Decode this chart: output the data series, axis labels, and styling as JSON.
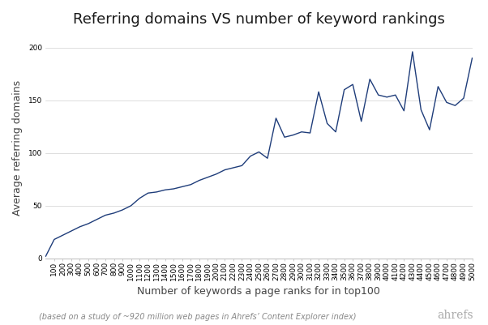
{
  "title": "Referring domains VS number of keyword rankings",
  "xlabel": "Number of keywords a page ranks for in top100",
  "ylabel": "Average referring domains",
  "footnote": "(based on a study of ~920 million web pages in Ahrefs’ Content Explorer index)",
  "watermark": "ahrefs",
  "line_color": "#1f3d7a",
  "background_color": "#ffffff",
  "x": [
    0,
    100,
    200,
    300,
    400,
    500,
    600,
    700,
    800,
    900,
    1000,
    1100,
    1200,
    1300,
    1400,
    1500,
    1600,
    1700,
    1800,
    1900,
    2000,
    2100,
    2200,
    2300,
    2400,
    2500,
    2600,
    2700,
    2800,
    2900,
    3000,
    3100,
    3200,
    3300,
    3400,
    3500,
    3600,
    3700,
    3800,
    3900,
    4000,
    4100,
    4200,
    4300,
    4400,
    4500,
    4600,
    4700,
    4800,
    4900,
    5000
  ],
  "y": [
    2,
    18,
    22,
    26,
    30,
    33,
    37,
    41,
    43,
    46,
    50,
    57,
    62,
    63,
    65,
    66,
    68,
    70,
    74,
    77,
    80,
    84,
    86,
    88,
    97,
    101,
    95,
    133,
    115,
    117,
    120,
    119,
    158,
    128,
    120,
    160,
    165,
    130,
    170,
    155,
    153,
    155,
    140,
    196,
    141,
    122,
    163,
    148,
    145,
    152,
    190
  ],
  "ylim": [
    0,
    210
  ],
  "xlim": [
    0,
    5000
  ],
  "yticks": [
    0,
    50,
    100,
    150,
    200
  ],
  "title_fontsize": 13,
  "label_fontsize": 9,
  "tick_fontsize": 6.5,
  "footnote_fontsize": 7,
  "watermark_fontsize": 10
}
